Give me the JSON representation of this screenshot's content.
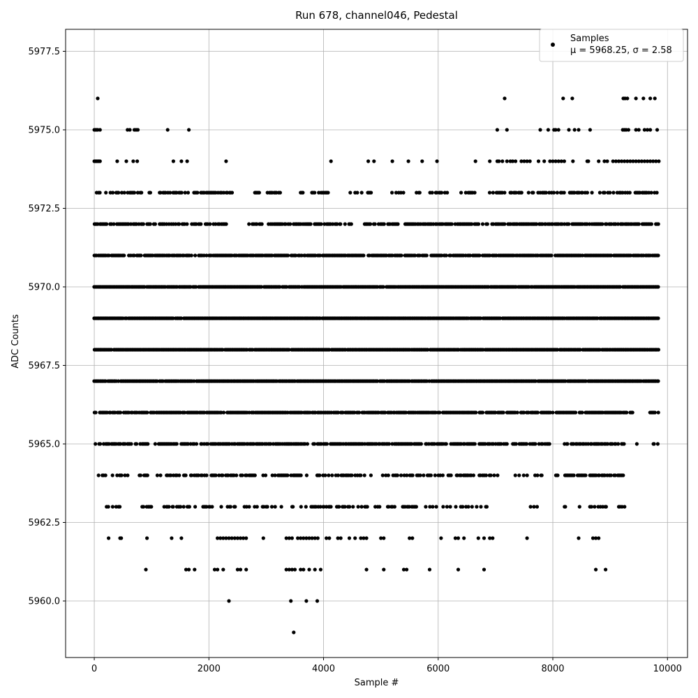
{
  "chart_data": {
    "type": "scatter",
    "title": "Run 678, channel046, Pedestal",
    "xlabel": "Sample #",
    "ylabel": "ADC Counts",
    "xlim": [
      -500,
      10350
    ],
    "ylim": [
      5958.2,
      5978.2
    ],
    "grid": true,
    "x_ticks": [
      0,
      2000,
      4000,
      6000,
      8000,
      10000
    ],
    "x_tick_labels": [
      "0",
      "2000",
      "4000",
      "6000",
      "8000",
      "10000"
    ],
    "y_ticks": [
      5960.0,
      5962.5,
      5965.0,
      5967.5,
      5970.0,
      5972.5,
      5975.0,
      5977.5
    ],
    "y_tick_labels": [
      "5960.0",
      "5962.5",
      "5965.0",
      "5967.5",
      "5970.0",
      "5972.5",
      "5975.0",
      "5977.5"
    ],
    "legend": {
      "position": "top-right",
      "entries": [
        {
          "label": "Samples",
          "stats": "μ = 5968.25, σ = 2.58",
          "color": "#000000"
        }
      ]
    },
    "series": [
      {
        "name": "Samples",
        "color": "#000000",
        "n_samples": 9850,
        "mean": 5968.25,
        "sigma": 2.58,
        "x_range": [
          0,
          9850
        ],
        "levels": [
          {
            "y": 5959,
            "x": [
              3480
            ]
          },
          {
            "y": 5960,
            "x": [
              2350,
              3430,
              3700,
              3890
            ]
          },
          {
            "y": 5961,
            "x": [
              900,
              1600,
              1650,
              1750,
              2100,
              2150,
              2250,
              2500,
              2550,
              2650,
              3350,
              3400,
              3450,
              3500,
              3600,
              3650,
              3750,
              3850,
              3950,
              4750,
              5050,
              5400,
              5450,
              5850,
              6350,
              6800,
              8750,
              8920
            ]
          },
          {
            "y": 5962,
            "x": [
              250,
              450,
              470,
              920,
              1350,
              1520,
              2150,
              2200,
              2250,
              2300,
              2350,
              2400,
              2450,
              2500,
              2550,
              2600,
              2650,
              2950,
              3350,
              3400,
              3450,
              3550,
              3600,
              3650,
              3700,
              3750,
              3800,
              3850,
              3900,
              4050,
              4100,
              4250,
              4300,
              4450,
              4550,
              4650,
              4700,
              4750,
              5000,
              5050,
              5500,
              5550,
              6050,
              6300,
              6350,
              6450,
              6700,
              6800,
              6900,
              6950,
              7550,
              8450,
              8700,
              8750,
              8800
            ]
          },
          {
            "y": 5963,
            "x_ranges": [
              [
                180,
                480
              ],
              [
                780,
                1000
              ],
              [
                1100,
                1800
              ],
              [
                1900,
                3400
              ],
              [
                3450,
                4450
              ],
              [
                4500,
                5900
              ],
              [
                5950,
                6950
              ],
              [
                7550,
                7800
              ],
              [
                8200,
                8220
              ],
              [
                8450,
                8500
              ],
              [
                8650,
                9250
              ]
            ],
            "density": 0.35
          },
          {
            "y": 5964,
            "x_ranges": [
              [
                80,
                580
              ],
              [
                750,
                1000
              ],
              [
                1100,
                2800
              ],
              [
                2950,
                5950
              ],
              [
                6000,
                7050
              ],
              [
                7350,
                7850
              ],
              [
                8050,
                8600
              ],
              [
                8650,
                9250
              ]
            ],
            "density": 0.5
          },
          {
            "y": 5965,
            "x_ranges": [
              [
                0,
                20
              ],
              [
                80,
                750
              ],
              [
                800,
                7200
              ],
              [
                7300,
                7550
              ],
              [
                7600,
                7950
              ],
              [
                8200,
                9150
              ],
              [
                9200,
                9250
              ],
              [
                9450,
                9500
              ],
              [
                9750,
                9850
              ]
            ],
            "density": 0.75
          },
          {
            "y": 5966,
            "x_ranges": [
              [
                0,
                20
              ],
              [
                100,
                7750
              ],
              [
                7800,
                8400
              ],
              [
                8450,
                9300
              ],
              [
                9350,
                9400
              ],
              [
                9700,
                9850
              ]
            ],
            "density": 0.85
          },
          {
            "y": 5967,
            "x_ranges": [
              [
                0,
                9850
              ]
            ],
            "density": 0.95
          },
          {
            "y": 5968,
            "x_ranges": [
              [
                0,
                9850
              ]
            ],
            "density": 0.98
          },
          {
            "y": 5969,
            "x_ranges": [
              [
                0,
                9850
              ]
            ],
            "density": 0.98
          },
          {
            "y": 5970,
            "x_ranges": [
              [
                0,
                9850
              ]
            ],
            "density": 0.95
          },
          {
            "y": 5971,
            "x_ranges": [
              [
                0,
                9850
              ]
            ],
            "density": 0.85
          },
          {
            "y": 5972,
            "x_ranges": [
              [
                0,
                2300
              ],
              [
                2700,
                4500
              ],
              [
                4700,
                9850
              ]
            ],
            "density": 0.7
          },
          {
            "y": 5973,
            "x_ranges": [
              [
                0,
                1000
              ],
              [
                1100,
                2400
              ],
              [
                2800,
                3300
              ],
              [
                3600,
                4200
              ],
              [
                4450,
                4900
              ],
              [
                5150,
                5400
              ],
              [
                5600,
                6200
              ],
              [
                6400,
                6650
              ],
              [
                6900,
                9850
              ]
            ],
            "density": 0.45
          },
          {
            "y": 5974,
            "x": [
              0,
              20,
              40,
              60,
              80,
              100,
              400,
              560,
              680,
              750,
              1380,
              1520,
              1620,
              2300,
              4130,
              4780,
              4880,
              5200,
              5480,
              5720,
              5980,
              6650,
              6900,
              7030,
              7060,
              7120,
              7200,
              7260,
              7300,
              7350,
              7450,
              7500,
              7550,
              7600,
              7750,
              7850,
              7950,
              8000,
              8050,
              8100,
              8150,
              8200,
              8350,
              8600,
              8620,
              8800,
              8900,
              8950,
              9050,
              9100,
              9150,
              9200,
              9250,
              9300,
              9350,
              9400,
              9450,
              9500,
              9550,
              9600,
              9650,
              9700,
              9750,
              9800,
              9850
            ]
          },
          {
            "y": 5975,
            "x": [
              0,
              20,
              40,
              60,
              100,
              580,
              620,
              700,
              730,
              760,
              1280,
              1650,
              7030,
              7200,
              7780,
              7920,
              8020,
              8050,
              8100,
              8280,
              8380,
              8450,
              8650,
              9220,
              9250,
              9280,
              9320,
              9450,
              9500,
              9600,
              9650,
              9700,
              9820
            ]
          },
          {
            "y": 5976,
            "x": [
              60,
              7160,
              8180,
              8340,
              9230,
              9260,
              9300,
              9450,
              9580,
              9700,
              9780
            ]
          }
        ]
      }
    ]
  }
}
